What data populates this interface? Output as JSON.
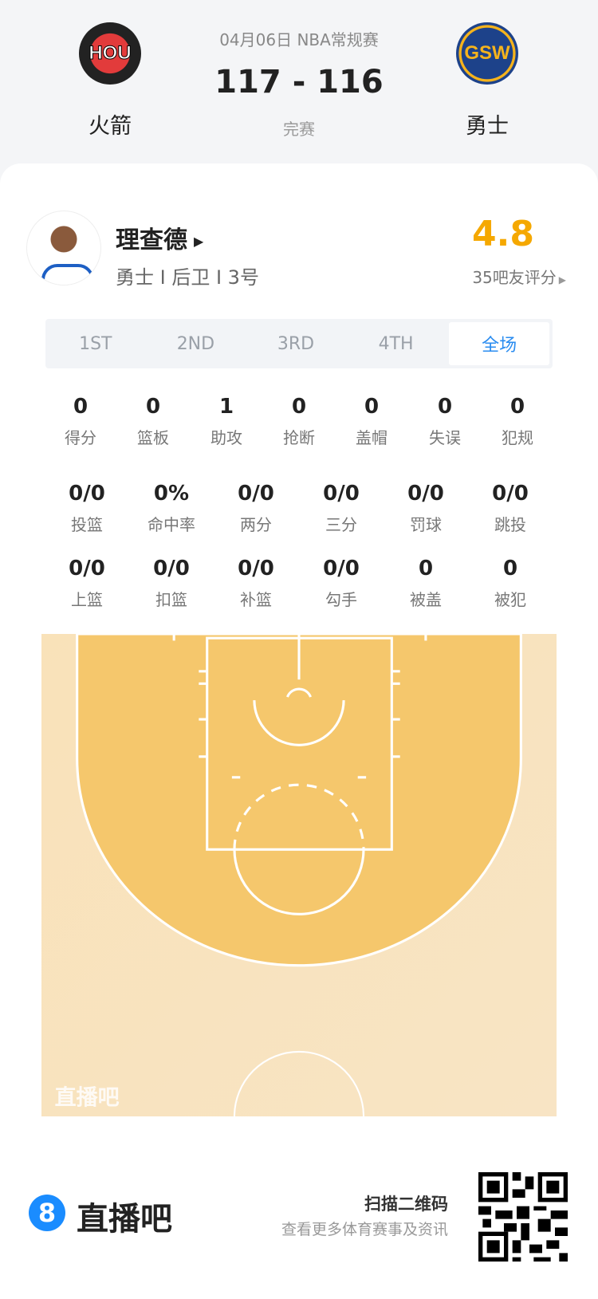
{
  "header": {
    "date_league": "04月06日 NBA常规赛",
    "score": "117 - 116",
    "status": "完赛",
    "home": {
      "abbr": "HOU",
      "name": "火箭"
    },
    "away": {
      "abbr": "GSW",
      "name": "勇士"
    }
  },
  "player": {
    "name": "理查德",
    "info": "勇士 I 后卫 I 3号",
    "rating": "4.8",
    "rating_label": "35吧友评分",
    "rating_color": "#f5a800"
  },
  "tabs": [
    {
      "label": "1ST"
    },
    {
      "label": "2ND"
    },
    {
      "label": "3RD"
    },
    {
      "label": "4TH"
    },
    {
      "label": "全场",
      "active": true
    }
  ],
  "stats_row1": [
    {
      "v": "0",
      "l": "得分"
    },
    {
      "v": "0",
      "l": "篮板"
    },
    {
      "v": "1",
      "l": "助攻"
    },
    {
      "v": "0",
      "l": "抢断"
    },
    {
      "v": "0",
      "l": "盖帽"
    },
    {
      "v": "0",
      "l": "失误"
    },
    {
      "v": "0",
      "l": "犯规"
    }
  ],
  "stats_row2": [
    {
      "v": "0/0",
      "l": "投篮"
    },
    {
      "v": "0%",
      "l": "命中率"
    },
    {
      "v": "0/0",
      "l": "两分"
    },
    {
      "v": "0/0",
      "l": "三分"
    },
    {
      "v": "0/0",
      "l": "罚球"
    },
    {
      "v": "0/0",
      "l": "跳投"
    }
  ],
  "stats_row3": [
    {
      "v": "0/0",
      "l": "上篮"
    },
    {
      "v": "0/0",
      "l": "扣篮"
    },
    {
      "v": "0/0",
      "l": "补篮"
    },
    {
      "v": "0/0",
      "l": "勾手"
    },
    {
      "v": "0",
      "l": "被盖"
    },
    {
      "v": "0",
      "l": "被犯"
    }
  ],
  "court": {
    "watermark": "直播吧"
  },
  "footer": {
    "brand": "直播吧",
    "brand_icon": "8",
    "qr_title": "扫描二维码",
    "qr_sub": "查看更多体育赛事及资讯",
    "accent": "#1a8cff"
  }
}
